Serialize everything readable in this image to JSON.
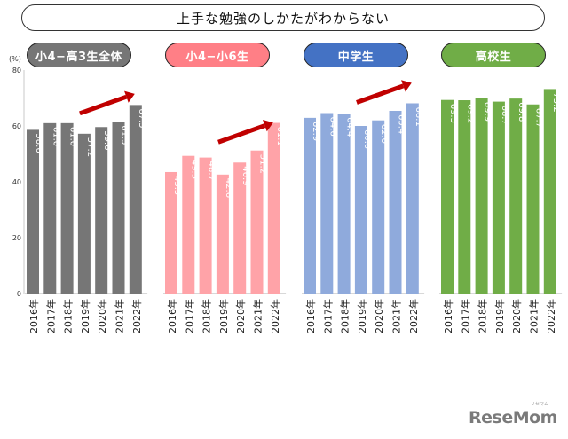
{
  "title": "上手な勉強のしかたがわからない",
  "y_unit": "(%)",
  "y_ticks": [
    "0",
    "20",
    "40",
    "60",
    "80"
  ],
  "logo": "ReseMom",
  "logo_kana": "リセマム",
  "colors": {
    "arrow": "#c00000",
    "value_label": "#ffffff"
  },
  "chart_data": [
    {
      "type": "bar",
      "label": "小4−高3生全体",
      "color": "#767676",
      "label_bg": "#767676",
      "categories": [
        "2016年",
        "2017年",
        "2018年",
        "2019年",
        "2020年",
        "2021年",
        "2022年"
      ],
      "values": [
        58.6,
        61.0,
        61.0,
        57.2,
        59.6,
        61.5,
        67.5
      ],
      "value_labels": [
        "58.6",
        "61.0",
        "61.0",
        "57.2",
        "59.6",
        "61.5",
        "67.5"
      ],
      "trend_arrow": true,
      "ylim": [
        0,
        80
      ]
    },
    {
      "type": "bar",
      "label": "小4−小6生",
      "color": "#ffa3a8",
      "label_bg": "#ff7f86",
      "categories": [
        "2016年",
        "2017年",
        "2018年",
        "2019年",
        "2020年",
        "2021年",
        "2022年"
      ],
      "values": [
        43.5,
        49.3,
        48.7,
        42.6,
        46.9,
        51.2,
        61.1
      ],
      "value_labels": [
        "43.5",
        "49.3",
        "48.7",
        "42.6",
        "46.9",
        "51.2",
        "61.1"
      ],
      "trend_arrow": true,
      "ylim": [
        0,
        80
      ]
    },
    {
      "type": "bar",
      "label": "中学生",
      "color": "#8faadc",
      "label_bg": "#4472c4",
      "categories": [
        "2016年",
        "2017年",
        "2018年",
        "2019年",
        "2020年",
        "2021年",
        "2022年"
      ],
      "values": [
        62.9,
        64.6,
        64.4,
        60.0,
        62.0,
        65.4,
        68.1
      ],
      "value_labels": [
        "62.9",
        "64.6",
        "64.4",
        "60.0",
        "62.0",
        "65.4",
        "68.1"
      ],
      "trend_arrow": true,
      "ylim": [
        0,
        80
      ]
    },
    {
      "type": "bar",
      "label": "高校生",
      "color": "#70ad47",
      "label_bg": "#70ad47",
      "categories": [
        "2016年",
        "2017年",
        "2018年",
        "2019年",
        "2020年",
        "2021年",
        "2022年"
      ],
      "values": [
        69.3,
        69.2,
        69.9,
        68.7,
        69.8,
        67.7,
        73.2
      ],
      "value_labels": [
        "69.3",
        "69.2",
        "69.9",
        "68.7",
        "69.8",
        "67.7",
        "73.2"
      ],
      "trend_arrow": false,
      "ylim": [
        0,
        80
      ]
    }
  ]
}
